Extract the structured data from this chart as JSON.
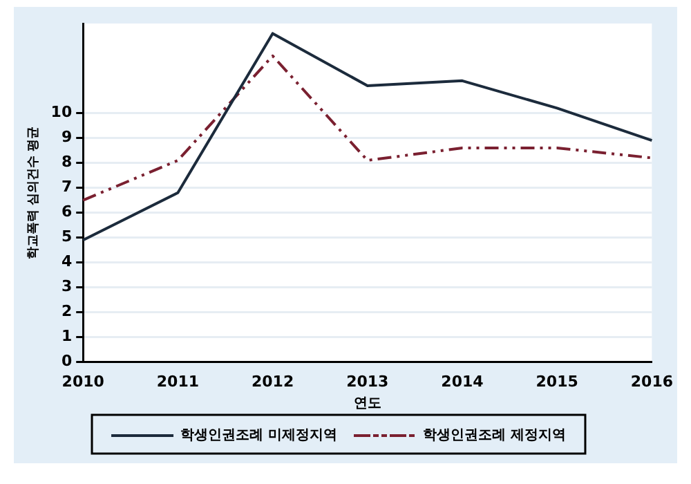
{
  "chart_data": {
    "type": "line",
    "xlabel": "연도",
    "ylabel": "학교폭력 심의건수 평균",
    "categories": [
      "2010",
      "2011",
      "2012",
      "2013",
      "2014",
      "2015",
      "2016"
    ],
    "series": [
      {
        "name": "학생인권조례 미제정지역",
        "color": "#1c2b3c",
        "line_style": "solid",
        "values": [
          4.9,
          6.8,
          13.2,
          11.1,
          11.3,
          10.2,
          8.9
        ]
      },
      {
        "name": "학생인권조례 제정지역",
        "color": "#7a2030",
        "line_style": "dashed",
        "values": [
          6.5,
          8.1,
          12.3,
          8.1,
          8.6,
          8.6,
          8.2
        ]
      }
    ],
    "ylim": [
      0,
      13.6
    ],
    "yticks": [
      0,
      1,
      2,
      3,
      4,
      5,
      6,
      7,
      8,
      9,
      10
    ],
    "grid": "y",
    "legend": "bottom",
    "marker": "none"
  }
}
